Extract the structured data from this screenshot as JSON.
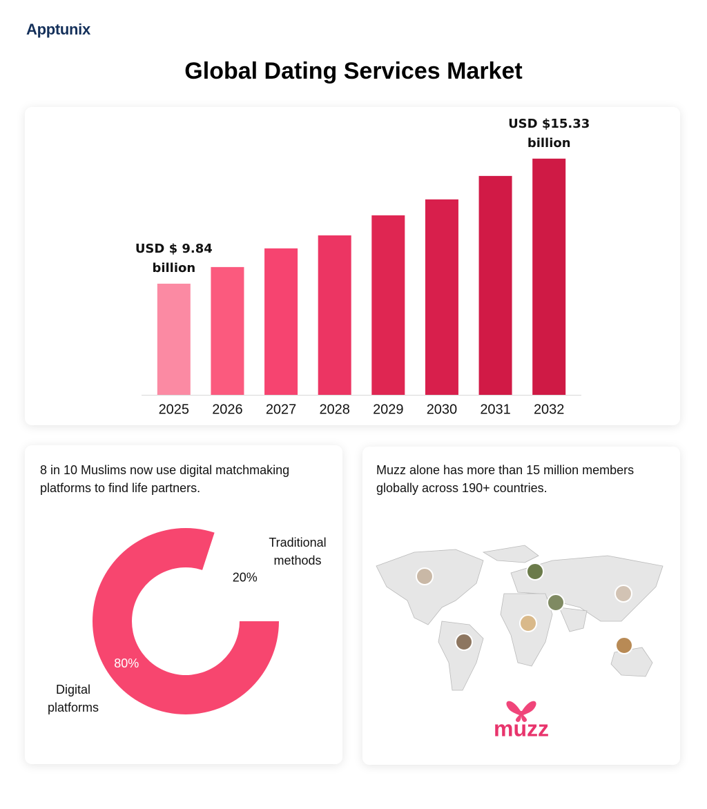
{
  "header": {
    "logo": "Apptunix",
    "title": "Global Dating Services Market"
  },
  "chart_data": [
    {
      "type": "bar",
      "categories": [
        "2025",
        "2026",
        "2027",
        "2028",
        "2029",
        "2030",
        "2031",
        "2032"
      ],
      "values": [
        9.84,
        10.57,
        11.39,
        11.96,
        12.84,
        13.54,
        14.57,
        15.33
      ],
      "value_labels": [
        "USD $ 9.84 billion",
        null,
        null,
        null,
        null,
        null,
        null,
        "USD $15.33 billion"
      ],
      "colors": [
        "#fb8aa3",
        "#fb5a7e",
        "#f64470",
        "#ec3563",
        "#df2652",
        "#d81f4c",
        "#d11a46",
        "#cf1a45"
      ],
      "ylim": [
        4.96,
        15.9
      ]
    },
    {
      "type": "pie",
      "title": "8 in 10 Muslims now use digital matchmaking platforms to find life partners.",
      "categories": [
        "Digital platforms",
        "Traditional methods"
      ],
      "values": [
        80,
        20
      ],
      "value_labels": [
        "80%",
        "20%"
      ],
      "colors": [
        "#f7466f",
        "#ffffff"
      ],
      "donut": true
    }
  ],
  "map_panel": {
    "text": "Muzz alone has more than 15 million members globally across 190+ countries.",
    "brand": "muzz"
  }
}
